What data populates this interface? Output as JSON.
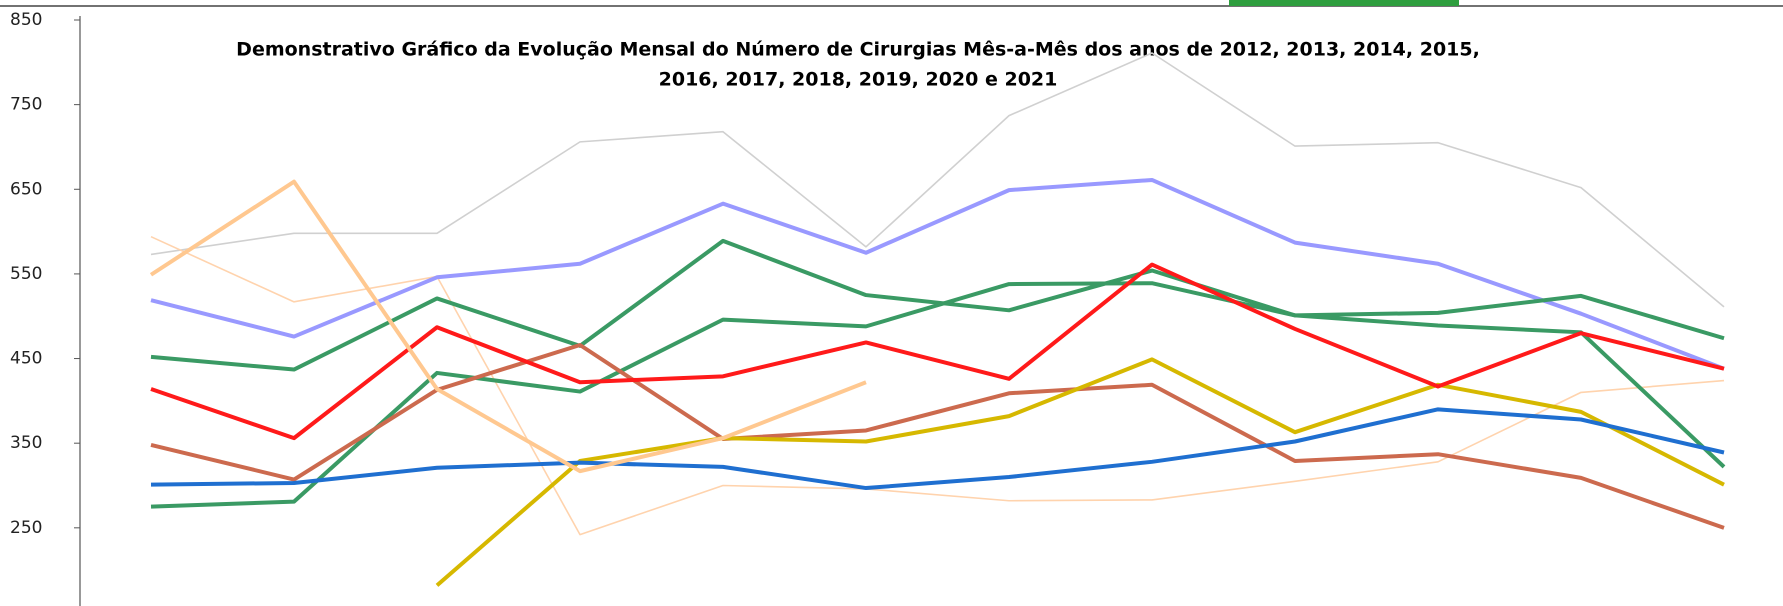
{
  "chart_data": {
    "type": "line",
    "title": [
      "Demonstrativo Gráfico da Evolução Mensal do Número de Cirurgias Mês-a-Mês dos anos de  2012, 2013, 2014, 2015,",
      "2016, 2017, 2018, 2019, 2020 e 2021"
    ],
    "categories": [
      null,
      null,
      null,
      null,
      null,
      null,
      null,
      null,
      null,
      null,
      null,
      null
    ],
    "ylim": [
      160,
      850
    ],
    "yticks": [
      250,
      350,
      450,
      550,
      650,
      750,
      850
    ],
    "grid": false,
    "series": [
      {
        "color": "#d0d0d0",
        "values": [
          573,
          598,
          598,
          706,
          718,
          582,
          737,
          811,
          701,
          705,
          652,
          511
        ]
      },
      {
        "color": "#ffd3ad",
        "values": [
          594,
          517,
          547,
          242,
          300,
          296,
          282,
          283,
          305,
          328,
          410,
          424
        ]
      },
      {
        "color": "#9999ff",
        "values": [
          519,
          476,
          546,
          562,
          633,
          575,
          649,
          661,
          587,
          562,
          503,
          438
        ]
      },
      {
        "color": "#3a9a64",
        "values": [
          452,
          437,
          521,
          465,
          589,
          525,
          507,
          554,
          501,
          489,
          481,
          322
        ]
      },
      {
        "color": "#3a9a64",
        "values": [
          275,
          281,
          433,
          411,
          496,
          488,
          538,
          539,
          501,
          504,
          524,
          474
        ]
      },
      {
        "color": "#cc6a4e",
        "values": [
          348,
          307,
          413,
          466,
          355,
          365,
          409,
          419,
          329,
          337,
          309,
          250
        ]
      },
      {
        "color": "#d6b800",
        "values": [
          null,
          null,
          182,
          329,
          356,
          352,
          382,
          449,
          363,
          419,
          387,
          301
        ]
      },
      {
        "color": "#1f6fd0",
        "values": [
          301,
          303,
          321,
          327,
          322,
          297,
          310,
          328,
          352,
          390,
          378,
          339
        ]
      },
      {
        "color": "#ff1a1a",
        "values": [
          414,
          356,
          487,
          422,
          429,
          469,
          426,
          561,
          485,
          417,
          480,
          438
        ]
      },
      {
        "color": "#ffc890",
        "values": [
          549,
          659,
          414,
          317,
          356,
          422,
          null,
          null,
          null,
          null,
          null,
          null
        ]
      }
    ]
  }
}
